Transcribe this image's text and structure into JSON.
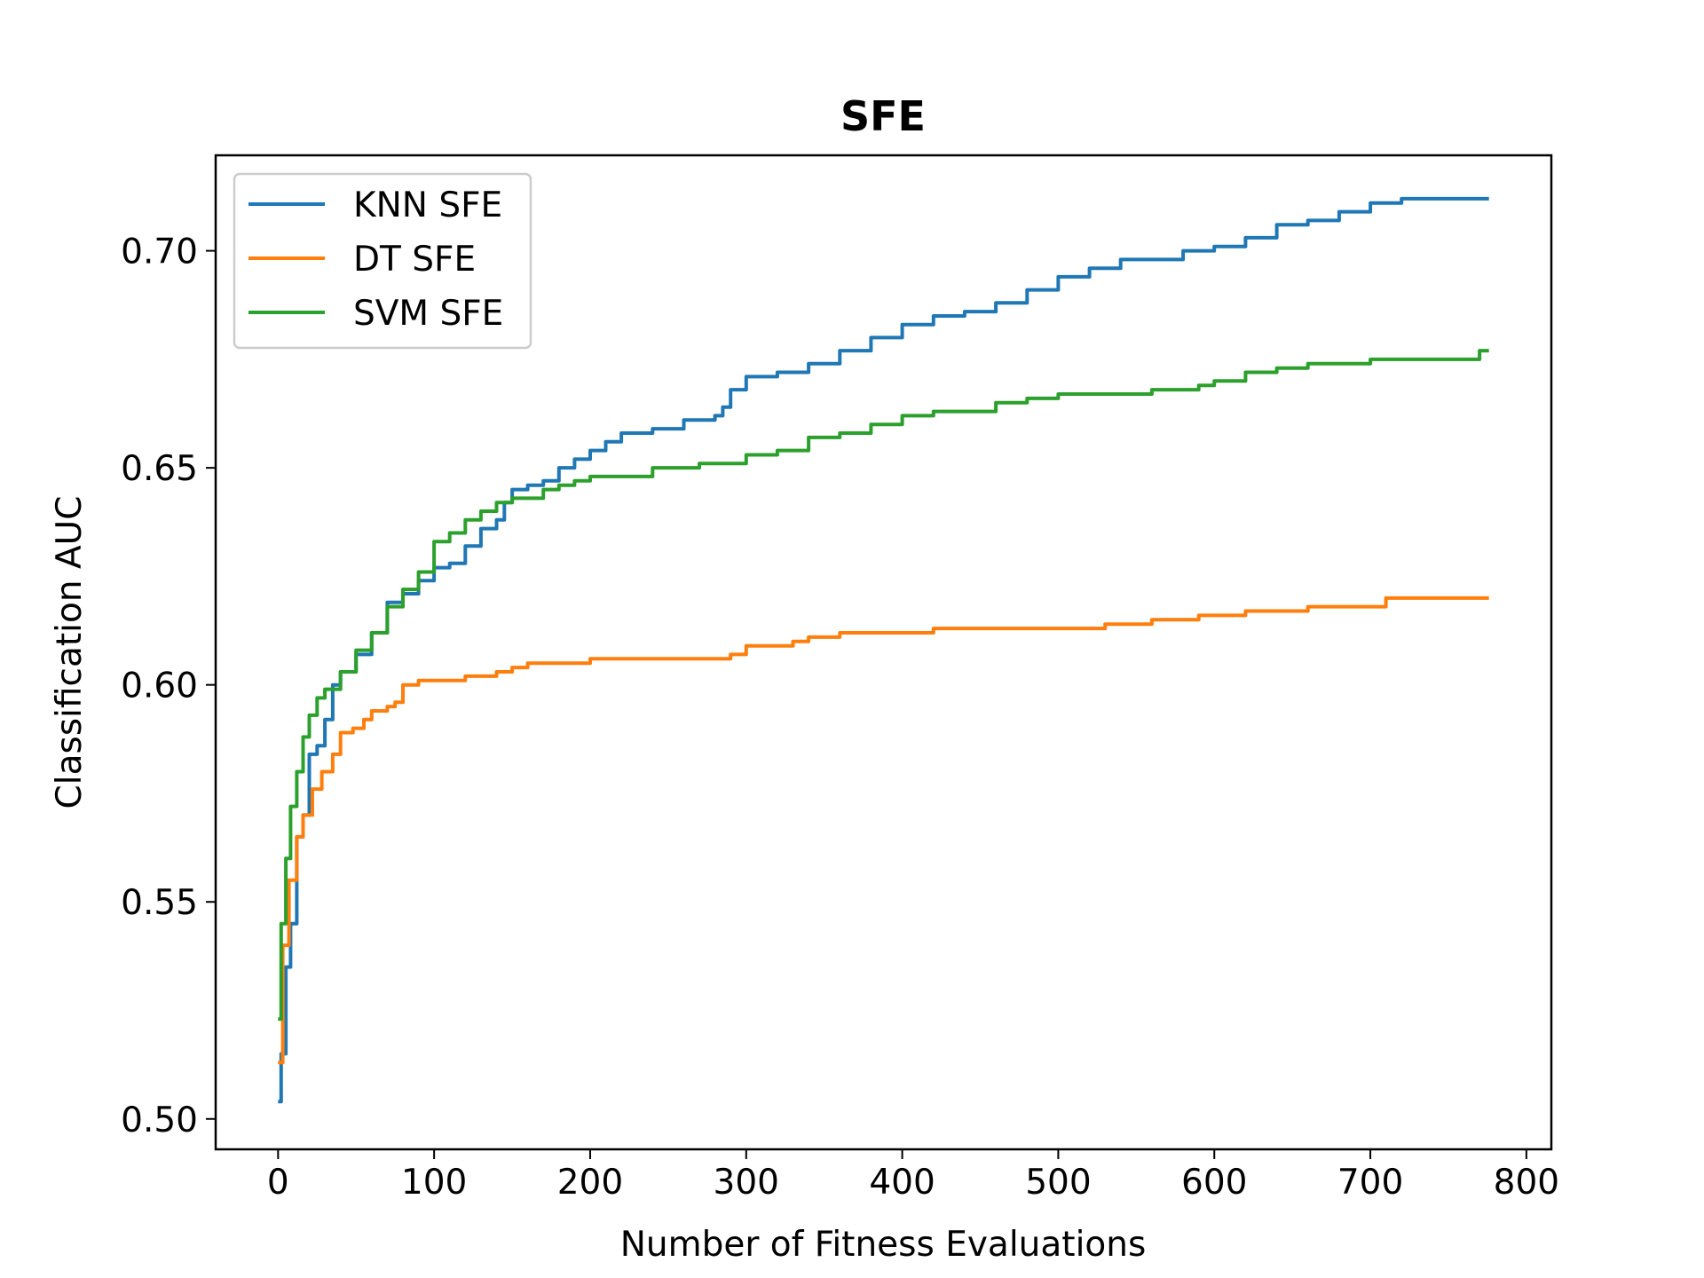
{
  "chart_data": {
    "type": "line",
    "title": "SFE",
    "xlabel": "Number of Fitness Evaluations",
    "ylabel": "Classification AUC",
    "xlim": [
      -40,
      816
    ],
    "ylim": [
      0.493,
      0.722
    ],
    "xticks": [
      "0",
      "100",
      "200",
      "300",
      "400",
      "500",
      "600",
      "700",
      "800"
    ],
    "yticks": [
      "0.50",
      "0.55",
      "0.60",
      "0.65",
      "0.70"
    ],
    "grid": false,
    "legend_position": "upper left",
    "series": [
      {
        "name": "KNN SFE",
        "color": "#1f77b4",
        "points": [
          [
            0,
            0.504
          ],
          [
            2,
            0.515
          ],
          [
            5,
            0.535
          ],
          [
            8,
            0.545
          ],
          [
            12,
            0.565
          ],
          [
            16,
            0.57
          ],
          [
            20,
            0.584
          ],
          [
            25,
            0.586
          ],
          [
            30,
            0.592
          ],
          [
            35,
            0.6
          ],
          [
            40,
            0.603
          ],
          [
            50,
            0.607
          ],
          [
            60,
            0.612
          ],
          [
            70,
            0.619
          ],
          [
            80,
            0.621
          ],
          [
            90,
            0.624
          ],
          [
            100,
            0.627
          ],
          [
            110,
            0.628
          ],
          [
            120,
            0.632
          ],
          [
            130,
            0.636
          ],
          [
            140,
            0.638
          ],
          [
            145,
            0.642
          ],
          [
            150,
            0.645
          ],
          [
            160,
            0.646
          ],
          [
            170,
            0.647
          ],
          [
            180,
            0.65
          ],
          [
            190,
            0.652
          ],
          [
            200,
            0.654
          ],
          [
            210,
            0.656
          ],
          [
            220,
            0.658
          ],
          [
            240,
            0.659
          ],
          [
            260,
            0.661
          ],
          [
            280,
            0.662
          ],
          [
            285,
            0.664
          ],
          [
            290,
            0.668
          ],
          [
            300,
            0.671
          ],
          [
            320,
            0.672
          ],
          [
            340,
            0.674
          ],
          [
            360,
            0.677
          ],
          [
            380,
            0.68
          ],
          [
            400,
            0.683
          ],
          [
            420,
            0.685
          ],
          [
            440,
            0.686
          ],
          [
            460,
            0.688
          ],
          [
            480,
            0.691
          ],
          [
            500,
            0.694
          ],
          [
            520,
            0.696
          ],
          [
            540,
            0.698
          ],
          [
            560,
            0.698
          ],
          [
            580,
            0.7
          ],
          [
            600,
            0.701
          ],
          [
            620,
            0.703
          ],
          [
            640,
            0.706
          ],
          [
            660,
            0.707
          ],
          [
            680,
            0.709
          ],
          [
            700,
            0.711
          ],
          [
            720,
            0.712
          ],
          [
            740,
            0.712
          ],
          [
            776,
            0.712
          ]
        ]
      },
      {
        "name": "DT SFE",
        "color": "#ff7f0e",
        "points": [
          [
            0,
            0.513
          ],
          [
            3,
            0.54
          ],
          [
            7,
            0.555
          ],
          [
            12,
            0.565
          ],
          [
            16,
            0.57
          ],
          [
            22,
            0.576
          ],
          [
            28,
            0.58
          ],
          [
            35,
            0.584
          ],
          [
            40,
            0.589
          ],
          [
            48,
            0.59
          ],
          [
            55,
            0.592
          ],
          [
            60,
            0.594
          ],
          [
            70,
            0.595
          ],
          [
            75,
            0.596
          ],
          [
            80,
            0.6
          ],
          [
            90,
            0.601
          ],
          [
            110,
            0.601
          ],
          [
            120,
            0.602
          ],
          [
            140,
            0.603
          ],
          [
            150,
            0.604
          ],
          [
            160,
            0.605
          ],
          [
            180,
            0.605
          ],
          [
            200,
            0.606
          ],
          [
            240,
            0.606
          ],
          [
            260,
            0.606
          ],
          [
            290,
            0.607
          ],
          [
            300,
            0.609
          ],
          [
            330,
            0.61
          ],
          [
            340,
            0.611
          ],
          [
            360,
            0.612
          ],
          [
            380,
            0.612
          ],
          [
            400,
            0.612
          ],
          [
            420,
            0.613
          ],
          [
            460,
            0.613
          ],
          [
            500,
            0.613
          ],
          [
            530,
            0.614
          ],
          [
            560,
            0.615
          ],
          [
            590,
            0.616
          ],
          [
            620,
            0.617
          ],
          [
            660,
            0.618
          ],
          [
            700,
            0.618
          ],
          [
            710,
            0.62
          ],
          [
            776,
            0.62
          ]
        ]
      },
      {
        "name": "SVM SFE",
        "color": "#2ca02c",
        "points": [
          [
            0,
            0.523
          ],
          [
            2,
            0.545
          ],
          [
            5,
            0.56
          ],
          [
            8,
            0.572
          ],
          [
            12,
            0.58
          ],
          [
            16,
            0.588
          ],
          [
            20,
            0.593
          ],
          [
            25,
            0.597
          ],
          [
            30,
            0.599
          ],
          [
            40,
            0.603
          ],
          [
            50,
            0.608
          ],
          [
            60,
            0.612
          ],
          [
            70,
            0.618
          ],
          [
            80,
            0.622
          ],
          [
            90,
            0.626
          ],
          [
            100,
            0.633
          ],
          [
            110,
            0.635
          ],
          [
            120,
            0.638
          ],
          [
            130,
            0.64
          ],
          [
            140,
            0.642
          ],
          [
            150,
            0.643
          ],
          [
            170,
            0.645
          ],
          [
            180,
            0.646
          ],
          [
            190,
            0.647
          ],
          [
            200,
            0.648
          ],
          [
            220,
            0.648
          ],
          [
            240,
            0.65
          ],
          [
            270,
            0.651
          ],
          [
            300,
            0.653
          ],
          [
            320,
            0.654
          ],
          [
            340,
            0.657
          ],
          [
            360,
            0.658
          ],
          [
            380,
            0.66
          ],
          [
            400,
            0.662
          ],
          [
            420,
            0.663
          ],
          [
            440,
            0.663
          ],
          [
            460,
            0.665
          ],
          [
            480,
            0.666
          ],
          [
            500,
            0.667
          ],
          [
            530,
            0.667
          ],
          [
            560,
            0.668
          ],
          [
            590,
            0.669
          ],
          [
            600,
            0.67
          ],
          [
            620,
            0.672
          ],
          [
            640,
            0.673
          ],
          [
            660,
            0.674
          ],
          [
            700,
            0.675
          ],
          [
            740,
            0.675
          ],
          [
            765,
            0.675
          ],
          [
            770,
            0.677
          ],
          [
            776,
            0.677
          ]
        ]
      }
    ]
  }
}
